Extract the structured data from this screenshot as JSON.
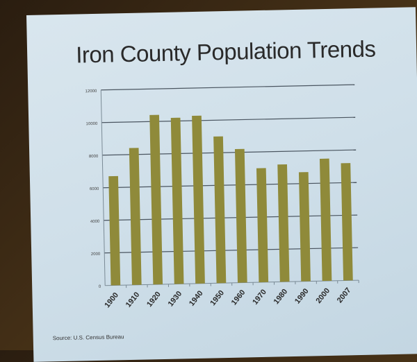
{
  "chart_data": {
    "type": "bar",
    "title": "Iron County Population Trends",
    "categories": [
      "1900",
      "1910",
      "1920",
      "1930",
      "1940",
      "1950",
      "1960",
      "1970",
      "1980",
      "1990",
      "2000",
      "2007"
    ],
    "values": [
      6700,
      8400,
      10400,
      10200,
      10300,
      9000,
      8200,
      7000,
      7200,
      6700,
      7500,
      7200
    ],
    "xlabel": "",
    "ylabel": "",
    "ylim": [
      0,
      12000
    ],
    "yticks": [
      "0",
      "2000",
      "4000",
      "6000",
      "8000",
      "10000",
      "12000"
    ],
    "grid": true,
    "bar_color": "#8f8a3a",
    "source": "Source:  U.S. Census Bureau"
  }
}
